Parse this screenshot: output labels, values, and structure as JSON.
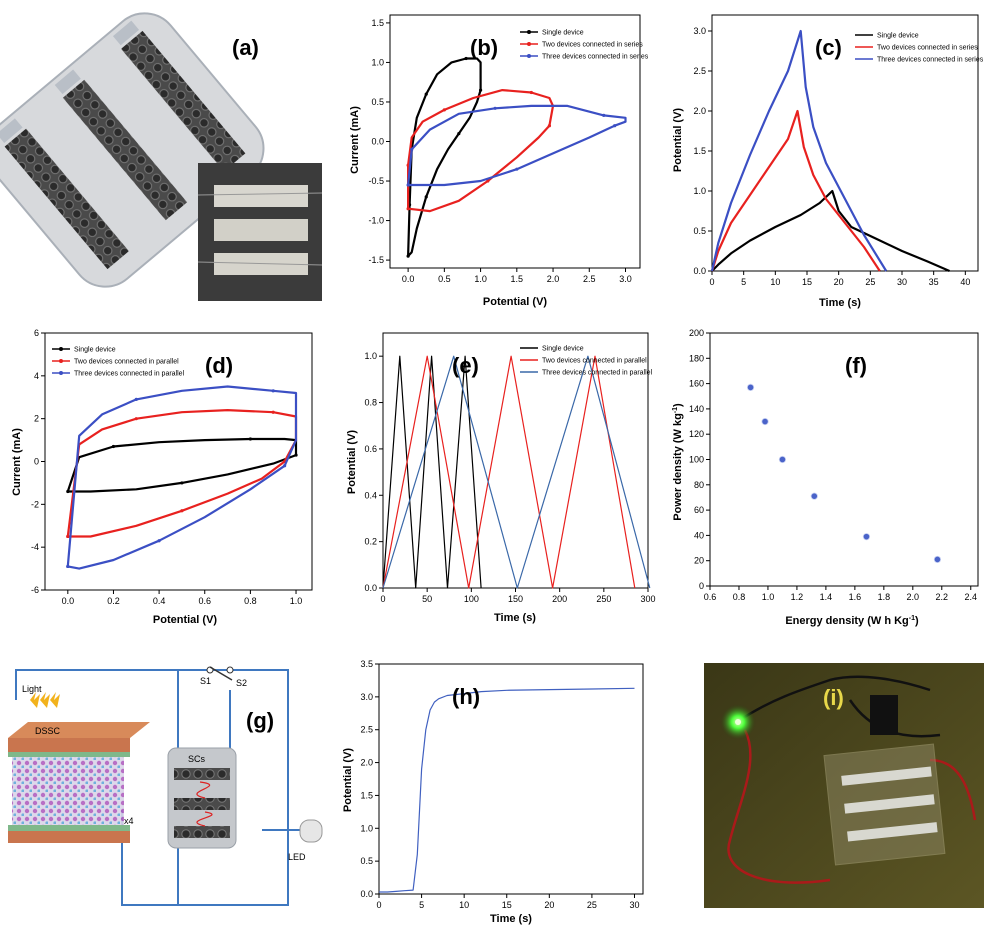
{
  "panel_labels": {
    "a": "(a)",
    "b": "(b)",
    "c": "(c)",
    "d": "(d)",
    "e": "(e)",
    "f": "(f)",
    "g": "(g)",
    "h": "(h)",
    "i": "(i)"
  },
  "colors": {
    "black": "#000000",
    "red": "#e8211f",
    "blue": "#3b4fc4",
    "steelblue": "#3a68a8",
    "f_marker": "#4a63c9",
    "h_line": "#4060c0"
  },
  "chart_data": [
    {
      "panel": "b",
      "type": "line",
      "xlabel": "Potential (V)",
      "ylabel": "Current (mA)",
      "xlim": [
        -0.25,
        3.2
      ],
      "ylim": [
        -1.6,
        1.6
      ],
      "xticks": [
        "0.0",
        "0.5",
        "1.0",
        "1.5",
        "2.0",
        "2.5",
        "3.0"
      ],
      "yticks": [
        "-1.5",
        "-1.0",
        "-0.5",
        "0.0",
        "0.5",
        "1.0",
        "1.5"
      ],
      "legend_position": "top-right",
      "series": [
        {
          "name": "Single device",
          "color": "black",
          "x": [
            0.0,
            0.05,
            0.12,
            0.25,
            0.4,
            0.55,
            0.7,
            0.85,
            0.95,
            1.0,
            1.0,
            0.95,
            0.8,
            0.6,
            0.4,
            0.25,
            0.12,
            0.05,
            0.02,
            0.0
          ],
          "y": [
            -1.45,
            -1.4,
            -1.1,
            -0.7,
            -0.35,
            -0.1,
            0.1,
            0.3,
            0.5,
            0.65,
            1.0,
            1.05,
            1.05,
            1.0,
            0.85,
            0.6,
            0.3,
            -0.1,
            -0.8,
            -1.45
          ]
        },
        {
          "name": "Two devices connected in series",
          "color": "red",
          "x": [
            0.0,
            0.3,
            0.7,
            1.1,
            1.5,
            1.8,
            1.95,
            2.0,
            1.95,
            1.7,
            1.3,
            0.9,
            0.5,
            0.2,
            0.05,
            0.0,
            0.0
          ],
          "y": [
            -0.85,
            -0.88,
            -0.75,
            -0.5,
            -0.2,
            0.05,
            0.2,
            0.45,
            0.55,
            0.62,
            0.65,
            0.55,
            0.4,
            0.25,
            0.05,
            -0.3,
            -0.85
          ]
        },
        {
          "name": "Three devices connected in series",
          "color": "blue",
          "x": [
            0.0,
            0.5,
            1.0,
            1.5,
            2.0,
            2.5,
            2.85,
            3.0,
            3.0,
            2.7,
            2.2,
            1.7,
            1.2,
            0.7,
            0.3,
            0.05,
            0.0
          ],
          "y": [
            -0.55,
            -0.55,
            -0.5,
            -0.35,
            -0.15,
            0.05,
            0.2,
            0.25,
            0.3,
            0.33,
            0.45,
            0.45,
            0.42,
            0.35,
            0.15,
            -0.1,
            -0.55
          ]
        }
      ]
    },
    {
      "panel": "c",
      "type": "line",
      "xlabel": "Time (s)",
      "ylabel": "Potential (V)",
      "xlim": [
        0,
        42
      ],
      "ylim": [
        0,
        3.2
      ],
      "xticks": [
        "0",
        "5",
        "10",
        "15",
        "20",
        "25",
        "30",
        "35",
        "40"
      ],
      "yticks": [
        "0.0",
        "0.5",
        "1.0",
        "1.5",
        "2.0",
        "2.5",
        "3.0"
      ],
      "legend_position": "top-right",
      "series": [
        {
          "name": "Single device",
          "color": "black",
          "x": [
            0,
            1,
            3,
            6,
            10,
            14,
            17,
            19,
            20,
            22,
            26,
            30,
            34,
            37.5
          ],
          "y": [
            0,
            0.08,
            0.22,
            0.38,
            0.55,
            0.7,
            0.85,
            1.0,
            0.75,
            0.55,
            0.4,
            0.25,
            0.12,
            0.0
          ]
        },
        {
          "name": "Two devices connected in series",
          "color": "red",
          "x": [
            0,
            1,
            3,
            6,
            9,
            12,
            13.5,
            14.5,
            16,
            18,
            21,
            24,
            26.5
          ],
          "y": [
            0,
            0.25,
            0.6,
            0.95,
            1.3,
            1.65,
            2.0,
            1.55,
            1.2,
            0.9,
            0.6,
            0.3,
            0.0
          ]
        },
        {
          "name": "Three devices connected in series",
          "color": "blue",
          "x": [
            0,
            1,
            3,
            6,
            9,
            12,
            14,
            14.8,
            16,
            18,
            21,
            24,
            27.5
          ],
          "y": [
            0,
            0.35,
            0.85,
            1.45,
            2.0,
            2.5,
            3.0,
            2.3,
            1.8,
            1.35,
            0.9,
            0.45,
            0.0
          ]
        }
      ]
    },
    {
      "panel": "d",
      "type": "line",
      "xlabel": "Potential (V)",
      "ylabel": "Current (mA)",
      "xlim": [
        -0.1,
        1.07
      ],
      "ylim": [
        -6,
        6
      ],
      "xticks": [
        "0.0",
        "0.2",
        "0.4",
        "0.6",
        "0.8",
        "1.0"
      ],
      "yticks": [
        "-6",
        "-4",
        "-2",
        "0",
        "2",
        "4",
        "6"
      ],
      "legend_position": "top-left",
      "series": [
        {
          "name": "Single device",
          "color": "black",
          "x": [
            0.0,
            0.1,
            0.3,
            0.5,
            0.7,
            0.9,
            1.0,
            1.0,
            0.95,
            0.8,
            0.6,
            0.4,
            0.2,
            0.05,
            0.0
          ],
          "y": [
            -1.4,
            -1.4,
            -1.3,
            -1.0,
            -0.6,
            -0.1,
            0.3,
            1.0,
            1.05,
            1.05,
            1.0,
            0.9,
            0.7,
            0.2,
            -1.4
          ]
        },
        {
          "name": "Two devices connected in parallel",
          "color": "red",
          "x": [
            0.0,
            0.1,
            0.3,
            0.5,
            0.7,
            0.85,
            0.95,
            1.0,
            1.0,
            0.9,
            0.7,
            0.5,
            0.3,
            0.15,
            0.05,
            0.0
          ],
          "y": [
            -3.5,
            -3.5,
            -3.0,
            -2.3,
            -1.5,
            -0.8,
            0.0,
            1.0,
            2.1,
            2.3,
            2.4,
            2.3,
            2.0,
            1.5,
            0.8,
            -3.5
          ]
        },
        {
          "name": "Three devices connected in parallel",
          "color": "blue",
          "x": [
            0.0,
            0.05,
            0.2,
            0.4,
            0.6,
            0.8,
            0.95,
            1.0,
            1.0,
            0.9,
            0.7,
            0.5,
            0.3,
            0.15,
            0.05,
            0.0
          ],
          "y": [
            -4.9,
            -5.0,
            -4.6,
            -3.7,
            -2.6,
            -1.3,
            -0.2,
            1.0,
            3.2,
            3.3,
            3.5,
            3.3,
            2.9,
            2.2,
            1.2,
            -4.9
          ]
        }
      ]
    },
    {
      "panel": "e",
      "type": "line",
      "xlabel": "Time (s)",
      "ylabel": "Potential (V)",
      "xlim": [
        0,
        300
      ],
      "ylim": [
        0,
        1.1
      ],
      "xticks": [
        "0",
        "50",
        "100",
        "150",
        "200",
        "250",
        "300"
      ],
      "yticks": [
        "0.0",
        "0.2",
        "0.4",
        "0.6",
        "0.8",
        "1.0"
      ],
      "legend_position": "top-right",
      "series": [
        {
          "name": "Single device",
          "color": "black",
          "x": [
            0,
            19,
            37,
            55,
            73,
            93,
            111
          ],
          "y": [
            0,
            1,
            0,
            1,
            0,
            1,
            0
          ]
        },
        {
          "name": "Two devices connected in parallel",
          "color": "red",
          "x": [
            0,
            50,
            97,
            145,
            192,
            240,
            285
          ],
          "y": [
            0,
            1,
            0,
            1,
            0,
            1,
            0
          ]
        },
        {
          "name": "Three devices connected in parallel",
          "color": "steelblue",
          "x": [
            0,
            80,
            152,
            232,
            302
          ],
          "y": [
            0,
            1,
            0,
            1,
            0
          ]
        }
      ]
    },
    {
      "panel": "f",
      "type": "scatter",
      "xlabel": "Energy density (W h Kg",
      "xlabel_sup": "-1",
      "xlabel_close": ")",
      "ylabel": "Power density (W kg",
      "ylabel_sup": "-1",
      "ylabel_close": ")",
      "xlim": [
        0.6,
        2.45
      ],
      "ylim": [
        0,
        200
      ],
      "xticks": [
        "0.6",
        "0.8",
        "1.0",
        "1.2",
        "1.4",
        "1.6",
        "1.8",
        "2.0",
        "2.2",
        "2.4"
      ],
      "yticks": [
        "0",
        "20",
        "40",
        "60",
        "80",
        "100",
        "120",
        "140",
        "160",
        "180",
        "200"
      ],
      "x": [
        0.88,
        0.98,
        1.1,
        1.32,
        1.68,
        2.17
      ],
      "y": [
        157,
        130,
        100,
        71,
        39,
        21
      ]
    },
    {
      "panel": "h",
      "type": "line",
      "xlabel": "Time (s)",
      "ylabel": "Potential (V)",
      "xlim": [
        0,
        31
      ],
      "ylim": [
        0,
        3.5
      ],
      "xticks": [
        "0",
        "5",
        "10",
        "15",
        "20",
        "25",
        "30"
      ],
      "yticks": [
        "0.0",
        "0.5",
        "1.0",
        "1.5",
        "2.0",
        "2.5",
        "3.0",
        "3.5"
      ],
      "series": [
        {
          "color": "h_line",
          "x": [
            0,
            1,
            2,
            3,
            4,
            4.5,
            5,
            5.5,
            6,
            6.5,
            7,
            8,
            10,
            12,
            15,
            20,
            25,
            30
          ],
          "y": [
            0.03,
            0.03,
            0.04,
            0.05,
            0.06,
            0.6,
            1.9,
            2.5,
            2.8,
            2.92,
            2.97,
            3.02,
            3.05,
            3.08,
            3.1,
            3.11,
            3.12,
            3.13
          ]
        }
      ]
    }
  ],
  "schematic_g": {
    "light": "Light",
    "dssc": "DSSC",
    "scs": "SCs",
    "s1": "S1",
    "s2": "S2",
    "x4": "x4",
    "led": "LED"
  }
}
